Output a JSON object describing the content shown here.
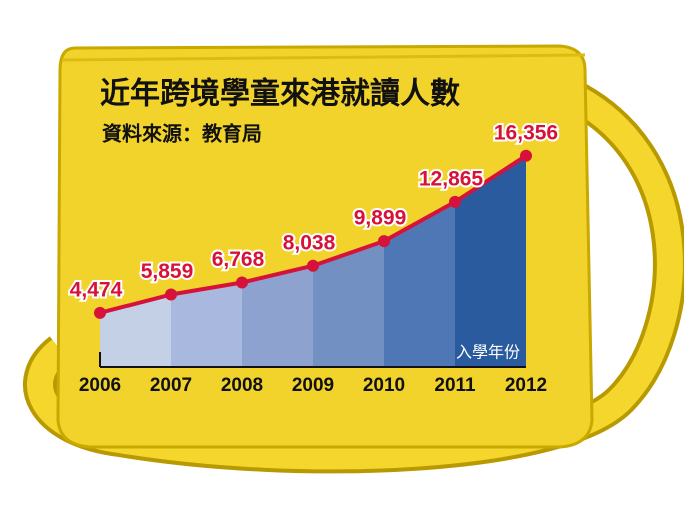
{
  "chart_data": {
    "type": "line",
    "title": "近年跨境學童來港就讀人數",
    "subtitle": "資料來源：教育局",
    "x_label": "入學年份",
    "categories": [
      "2006",
      "2007",
      "2008",
      "2009",
      "2010",
      "2011",
      "2012"
    ],
    "values": [
      4474,
      5859,
      6768,
      8038,
      9899,
      12865,
      16356
    ],
    "value_labels": [
      "4,474",
      "5,859",
      "6,768",
      "8,038",
      "9,899",
      "12,865",
      "16,356"
    ],
    "ylim": [
      0,
      18000
    ],
    "color": "#d7123a",
    "area_colors": [
      "#c3d0e6",
      "#a9b8de",
      "#8ea2cf",
      "#7390c2",
      "#4f77b5",
      "#2a5b9e"
    ]
  }
}
